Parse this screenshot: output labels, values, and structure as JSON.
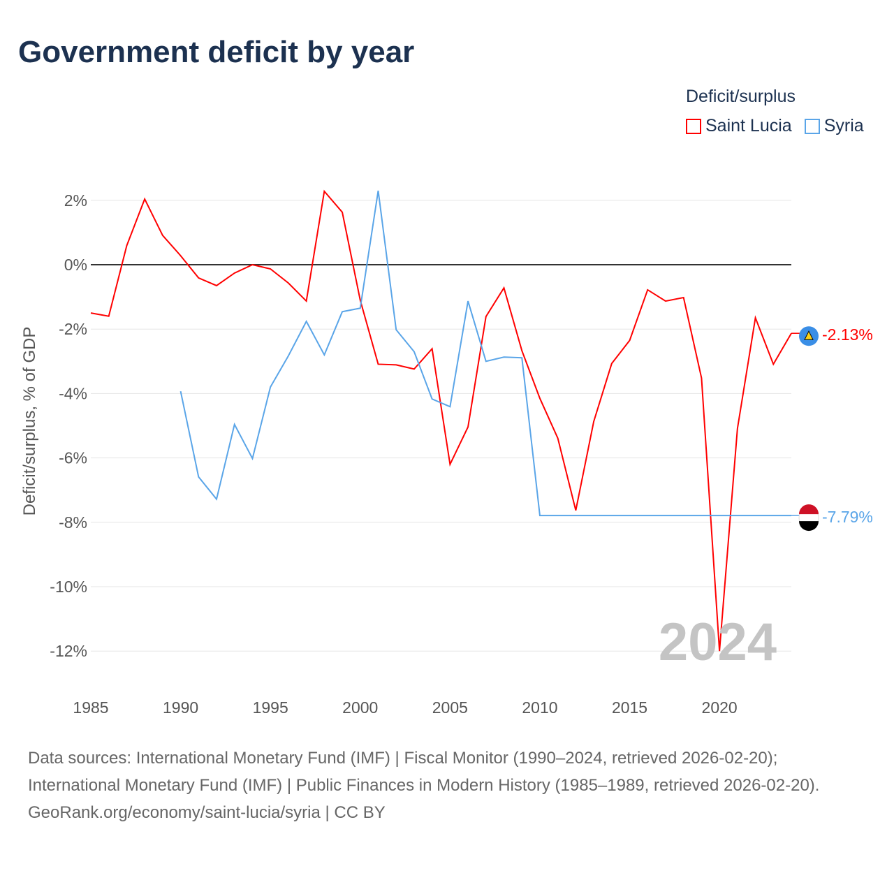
{
  "title": "Government deficit by year",
  "legend_title": "Deficit/surplus",
  "source_text": "Data sources: International Monetary Fund (IMF) | Fiscal Monitor (1990–2024, retrieved 2026-02-20); International Monetary Fund (IMF) | Public Finances in Modern History (1985–1989, retrieved 2026-02-20).",
  "footer": "GeoRank.org/economy/saint-lucia/syria | CC BY",
  "chart_data": {
    "type": "line",
    "ylabel": "Deficit/surplus, % of GDP",
    "xlim": [
      1985,
      2024
    ],
    "ylim": [
      -12,
      2
    ],
    "x_ticks": [
      1985,
      1990,
      1995,
      2000,
      2005,
      2010,
      2015,
      2020
    ],
    "y_ticks": [
      2,
      0,
      -2,
      -4,
      -6,
      -8,
      -10,
      -12
    ],
    "y_tick_labels": [
      "2%",
      "0%",
      "-2%",
      "-4%",
      "-6%",
      "-8%",
      "-10%",
      "-12%"
    ],
    "watermark_year": "2024",
    "series": [
      {
        "name": "Saint Lucia",
        "color": "#ff0000",
        "end_label": "-2.13%",
        "x": [
          1985,
          1986,
          1987,
          1988,
          1989,
          1990,
          1991,
          1992,
          1993,
          1994,
          1995,
          1996,
          1997,
          1998,
          1999,
          2000,
          2001,
          2002,
          2003,
          2004,
          2005,
          2006,
          2007,
          2008,
          2009,
          2010,
          2011,
          2012,
          2013,
          2014,
          2015,
          2016,
          2017,
          2018,
          2019,
          2020,
          2021,
          2022,
          2023,
          2024
        ],
        "values": [
          -1.5,
          -1.6,
          0.59,
          2.04,
          0.91,
          0.28,
          -0.41,
          -0.65,
          -0.26,
          0,
          -0.13,
          -0.57,
          -1.13,
          2.28,
          1.63,
          -1.1,
          -3.09,
          -3.11,
          -3.24,
          -2.61,
          -6.2,
          -5.04,
          -1.61,
          -0.72,
          -2.67,
          -4.15,
          -5.39,
          -7.63,
          -4.87,
          -3.07,
          -2.35,
          -0.78,
          -1.13,
          -1.02,
          -3.52,
          -12.0,
          -5.09,
          -1.65,
          -3.09,
          -2.13
        ]
      },
      {
        "name": "Syria",
        "color": "#5aa5e8",
        "end_label": "-7.79%",
        "x": [
          1990,
          1991,
          1992,
          1993,
          1994,
          1995,
          1996,
          1997,
          1998,
          1999,
          2000,
          2001,
          2002,
          2003,
          2004,
          2005,
          2006,
          2007,
          2008,
          2009,
          2010,
          2011,
          2012,
          2013,
          2014,
          2015,
          2016,
          2017,
          2018,
          2019,
          2020,
          2021,
          2022,
          2023,
          2024
        ],
        "values": [
          -3.93,
          -6.59,
          -7.28,
          -4.96,
          -6.02,
          -3.8,
          -2.83,
          -1.76,
          -2.8,
          -1.46,
          -1.35,
          2.3,
          -2.02,
          -2.7,
          -4.17,
          -4.41,
          -1.13,
          -3.0,
          -2.87,
          -2.89,
          -7.79,
          -7.79,
          -7.79,
          -7.79,
          -7.79,
          -7.79,
          -7.79,
          -7.79,
          -7.79,
          -7.79,
          -7.79,
          -7.79,
          -7.79,
          -7.79,
          -7.79
        ]
      }
    ]
  }
}
